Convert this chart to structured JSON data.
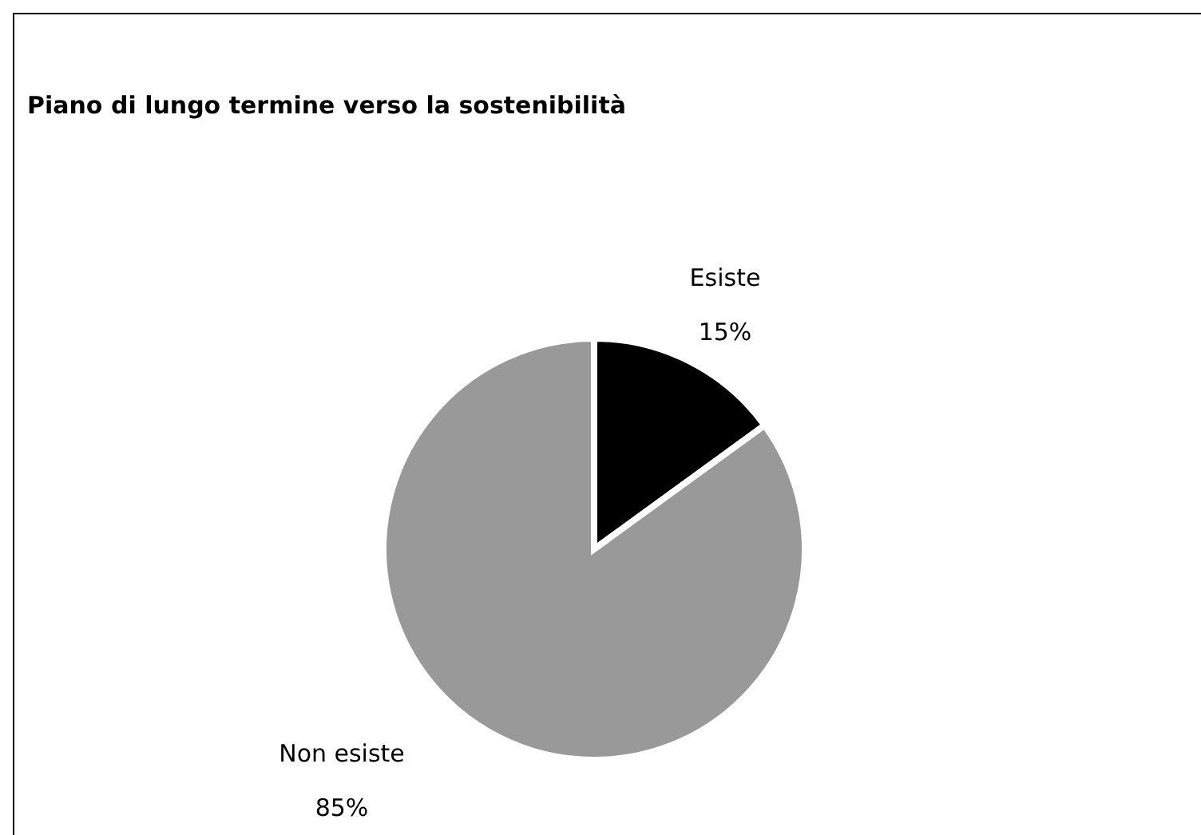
{
  "chart_data": {
    "type": "pie",
    "title": "Piano di lungo termine verso la sostenibilità",
    "categories": [
      "Esiste",
      "Non esiste"
    ],
    "values": [
      15,
      85
    ],
    "value_labels": [
      "15%",
      "85%"
    ],
    "colors": [
      "#000000",
      "#999999"
    ],
    "legend": false
  }
}
